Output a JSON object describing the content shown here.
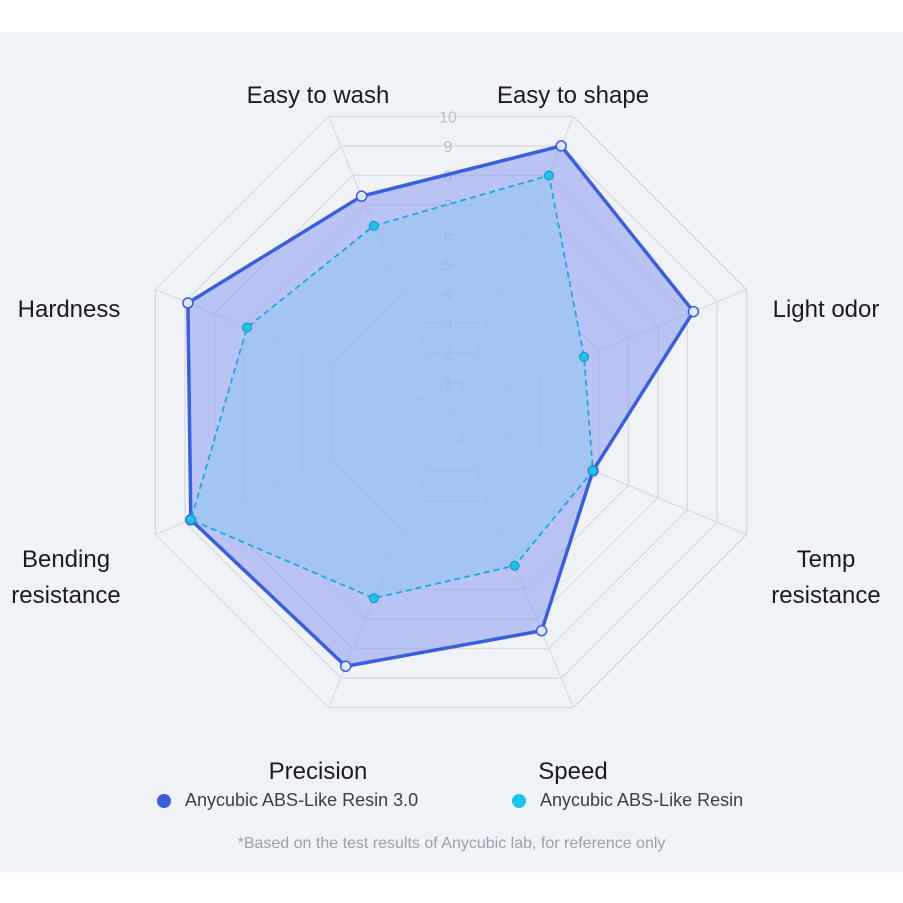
{
  "chart_data": {
    "type": "radar",
    "axes": [
      "Easy to wash",
      "Easy to shape",
      "Light odor",
      "Temp resistance",
      "Speed",
      "Precision",
      "Bending resistance",
      "Hardness"
    ],
    "axis_label_lines": [
      [
        "Easy to wash"
      ],
      [
        "Easy to shape"
      ],
      [
        "Light odor"
      ],
      [
        "Temp",
        "resistance"
      ],
      [
        "Speed"
      ],
      [
        "Precision"
      ],
      [
        "Bending",
        "resistance"
      ],
      [
        "Hardness"
      ]
    ],
    "range": [
      0,
      10
    ],
    "ticks": [
      "1",
      "2",
      "3",
      "4",
      "5",
      "6",
      "7",
      "8",
      "9",
      "10"
    ],
    "series": [
      {
        "name": "Anycubic ABS-Like Resin 3.0",
        "values": [
          7.3,
          9.0,
          8.2,
          4.8,
          7.4,
          8.6,
          8.8,
          8.9
        ],
        "color": "#3a5fd9",
        "fill": "#8e9cf0",
        "style": "solid"
      },
      {
        "name": "Anycubic ABS-Like Resin",
        "values": [
          6.3,
          8.0,
          4.5,
          4.8,
          5.2,
          6.3,
          8.8,
          6.9
        ],
        "color": "#1ea8de",
        "fill": "#8ec7f2",
        "style": "dashed"
      }
    ],
    "legend_position": "bottom",
    "grid": true
  },
  "footnote": "*Based on the test results of Anycubic lab, for reference only"
}
